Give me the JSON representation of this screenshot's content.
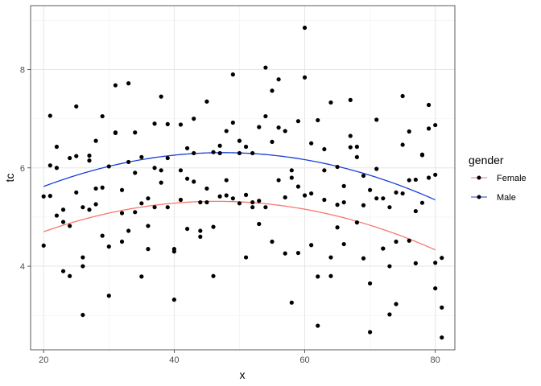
{
  "chart_data": {
    "type": "scatter",
    "title": "",
    "xlabel": "x",
    "ylabel": "tc",
    "xlim": [
      18,
      83
    ],
    "ylim": [
      2.3,
      9.3
    ],
    "x_ticks": [
      20,
      40,
      60,
      80
    ],
    "x_tick_labels": [
      "20",
      "40",
      "60",
      "80"
    ],
    "y_ticks": [
      4,
      6,
      8
    ],
    "y_tick_labels": [
      "4",
      "6",
      "8"
    ],
    "grid": true,
    "point_color": "#000000",
    "points": [
      [
        20,
        4.42
      ],
      [
        20,
        5.42
      ],
      [
        21,
        6.05
      ],
      [
        21,
        7.06
      ],
      [
        21,
        5.43
      ],
      [
        22,
        6.43
      ],
      [
        22,
        6.0
      ],
      [
        22,
        5.03
      ],
      [
        23,
        3.9
      ],
      [
        23,
        4.9
      ],
      [
        23,
        5.15
      ],
      [
        24,
        6.2
      ],
      [
        24,
        3.8
      ],
      [
        24,
        4.82
      ],
      [
        25,
        7.25
      ],
      [
        25,
        6.24
      ],
      [
        25,
        5.5
      ],
      [
        26,
        4.0
      ],
      [
        26,
        3.01
      ],
      [
        26,
        5.2
      ],
      [
        26,
        4.18
      ],
      [
        27,
        5.15
      ],
      [
        27,
        6.25
      ],
      [
        27,
        6.15
      ],
      [
        28,
        5.26
      ],
      [
        28,
        6.55
      ],
      [
        28,
        5.58
      ],
      [
        29,
        4.62
      ],
      [
        29,
        7.05
      ],
      [
        29,
        5.6
      ],
      [
        30,
        4.4
      ],
      [
        30,
        6.03
      ],
      [
        30,
        3.4
      ],
      [
        31,
        7.68
      ],
      [
        31,
        6.71
      ],
      [
        31,
        6.72
      ],
      [
        32,
        4.5
      ],
      [
        32,
        5.55
      ],
      [
        32,
        5.08
      ],
      [
        33,
        4.72
      ],
      [
        33,
        6.12
      ],
      [
        33,
        7.72
      ],
      [
        34,
        6.72
      ],
      [
        34,
        5.1
      ],
      [
        34,
        5.9
      ],
      [
        35,
        5.28
      ],
      [
        35,
        6.22
      ],
      [
        35,
        3.79
      ],
      [
        36,
        4.82
      ],
      [
        36,
        5.38
      ],
      [
        36,
        4.35
      ],
      [
        37,
        6.9
      ],
      [
        37,
        6.0
      ],
      [
        37,
        5.2
      ],
      [
        38,
        5.95
      ],
      [
        38,
        7.45
      ],
      [
        38,
        5.7
      ],
      [
        39,
        5.2
      ],
      [
        39,
        6.2
      ],
      [
        39,
        6.89
      ],
      [
        40,
        4.3
      ],
      [
        40,
        3.32
      ],
      [
        40,
        4.35
      ],
      [
        41,
        6.88
      ],
      [
        41,
        5.95
      ],
      [
        41,
        5.35
      ],
      [
        42,
        5.78
      ],
      [
        42,
        6.4
      ],
      [
        42,
        4.76
      ],
      [
        43,
        7.0
      ],
      [
        43,
        6.3
      ],
      [
        43,
        5.72
      ],
      [
        44,
        4.72
      ],
      [
        44,
        4.6
      ],
      [
        44,
        5.3
      ],
      [
        45,
        7.35
      ],
      [
        45,
        5.58
      ],
      [
        45,
        5.3
      ],
      [
        46,
        6.32
      ],
      [
        46,
        3.8
      ],
      [
        46,
        4.8
      ],
      [
        47,
        5.42
      ],
      [
        47,
        6.45
      ],
      [
        47,
        6.3
      ],
      [
        48,
        5.44
      ],
      [
        48,
        5.75
      ],
      [
        48,
        6.75
      ],
      [
        49,
        5.38
      ],
      [
        49,
        6.92
      ],
      [
        49,
        7.9
      ],
      [
        50,
        6.55
      ],
      [
        50,
        6.3
      ],
      [
        50,
        5.28
      ],
      [
        51,
        4.18
      ],
      [
        51,
        5.45
      ],
      [
        51,
        6.43
      ],
      [
        52,
        5.2
      ],
      [
        52,
        6.3
      ],
      [
        52,
        5.3
      ],
      [
        53,
        5.33
      ],
      [
        53,
        6.83
      ],
      [
        53,
        4.86
      ],
      [
        54,
        8.04
      ],
      [
        54,
        5.2
      ],
      [
        54,
        7.05
      ],
      [
        55,
        4.5
      ],
      [
        55,
        6.53
      ],
      [
        55,
        7.57
      ],
      [
        56,
        6.82
      ],
      [
        56,
        7.8
      ],
      [
        56,
        5.75
      ],
      [
        57,
        6.75
      ],
      [
        57,
        5.4
      ],
      [
        57,
        4.26
      ],
      [
        58,
        3.26
      ],
      [
        58,
        5.8
      ],
      [
        58,
        5.95
      ],
      [
        59,
        5.62
      ],
      [
        59,
        6.95
      ],
      [
        59,
        4.27
      ],
      [
        60,
        5.44
      ],
      [
        60,
        7.84
      ],
      [
        60,
        8.85
      ],
      [
        61,
        6.5
      ],
      [
        61,
        4.43
      ],
      [
        61,
        5.48
      ],
      [
        62,
        3.79
      ],
      [
        62,
        2.79
      ],
      [
        62,
        6.97
      ],
      [
        63,
        5.95
      ],
      [
        63,
        5.35
      ],
      [
        63,
        6.38
      ],
      [
        64,
        7.33
      ],
      [
        64,
        4.18
      ],
      [
        64,
        3.8
      ],
      [
        65,
        4.79
      ],
      [
        65,
        5.25
      ],
      [
        65,
        6.02
      ],
      [
        66,
        5.63
      ],
      [
        66,
        4.45
      ],
      [
        66,
        5.3
      ],
      [
        67,
        6.65
      ],
      [
        67,
        7.38
      ],
      [
        67,
        6.42
      ],
      [
        68,
        6.43
      ],
      [
        68,
        6.22
      ],
      [
        68,
        4.89
      ],
      [
        69,
        5.84
      ],
      [
        69,
        4.16
      ],
      [
        69,
        5.24
      ],
      [
        70,
        5.55
      ],
      [
        70,
        3.65
      ],
      [
        70,
        2.66
      ],
      [
        71,
        6.98
      ],
      [
        71,
        5.98
      ],
      [
        71,
        5.38
      ],
      [
        72,
        5.38
      ],
      [
        72,
        4.36
      ],
      [
        72,
        4.36
      ],
      [
        73,
        4.0
      ],
      [
        73,
        3.02
      ],
      [
        73,
        5.2
      ],
      [
        74,
        4.5
      ],
      [
        74,
        3.23
      ],
      [
        74,
        5.5
      ],
      [
        75,
        7.46
      ],
      [
        75,
        6.47
      ],
      [
        75,
        5.48
      ],
      [
        76,
        4.52
      ],
      [
        76,
        6.74
      ],
      [
        76,
        5.75
      ],
      [
        77,
        4.06
      ],
      [
        77,
        5.76
      ],
      [
        77,
        5.12
      ],
      [
        78,
        6.26
      ],
      [
        78,
        5.29
      ],
      [
        78,
        6.27
      ],
      [
        79,
        7.28
      ],
      [
        79,
        6.8
      ],
      [
        79,
        5.8
      ],
      [
        80,
        5.86
      ],
      [
        80,
        6.87
      ],
      [
        80,
        4.07
      ],
      [
        80,
        3.55
      ],
      [
        81,
        2.55
      ],
      [
        81,
        3.16
      ],
      [
        81,
        4.17
      ]
    ],
    "series": [
      {
        "name": "Female",
        "color": "#f8766d",
        "curve": {
          "x_start": 20,
          "x_end": 80,
          "vertex_x": 46.5,
          "vertex_y": 5.32,
          "a": -0.00088
        }
      },
      {
        "name": "Male",
        "color": "#1a3fd6",
        "curve": {
          "x_start": 20,
          "x_end": 80,
          "vertex_x": 47.5,
          "vertex_y": 6.31,
          "a": -0.00091
        }
      }
    ],
    "legend": {
      "title": "gender",
      "placement": "right"
    }
  }
}
